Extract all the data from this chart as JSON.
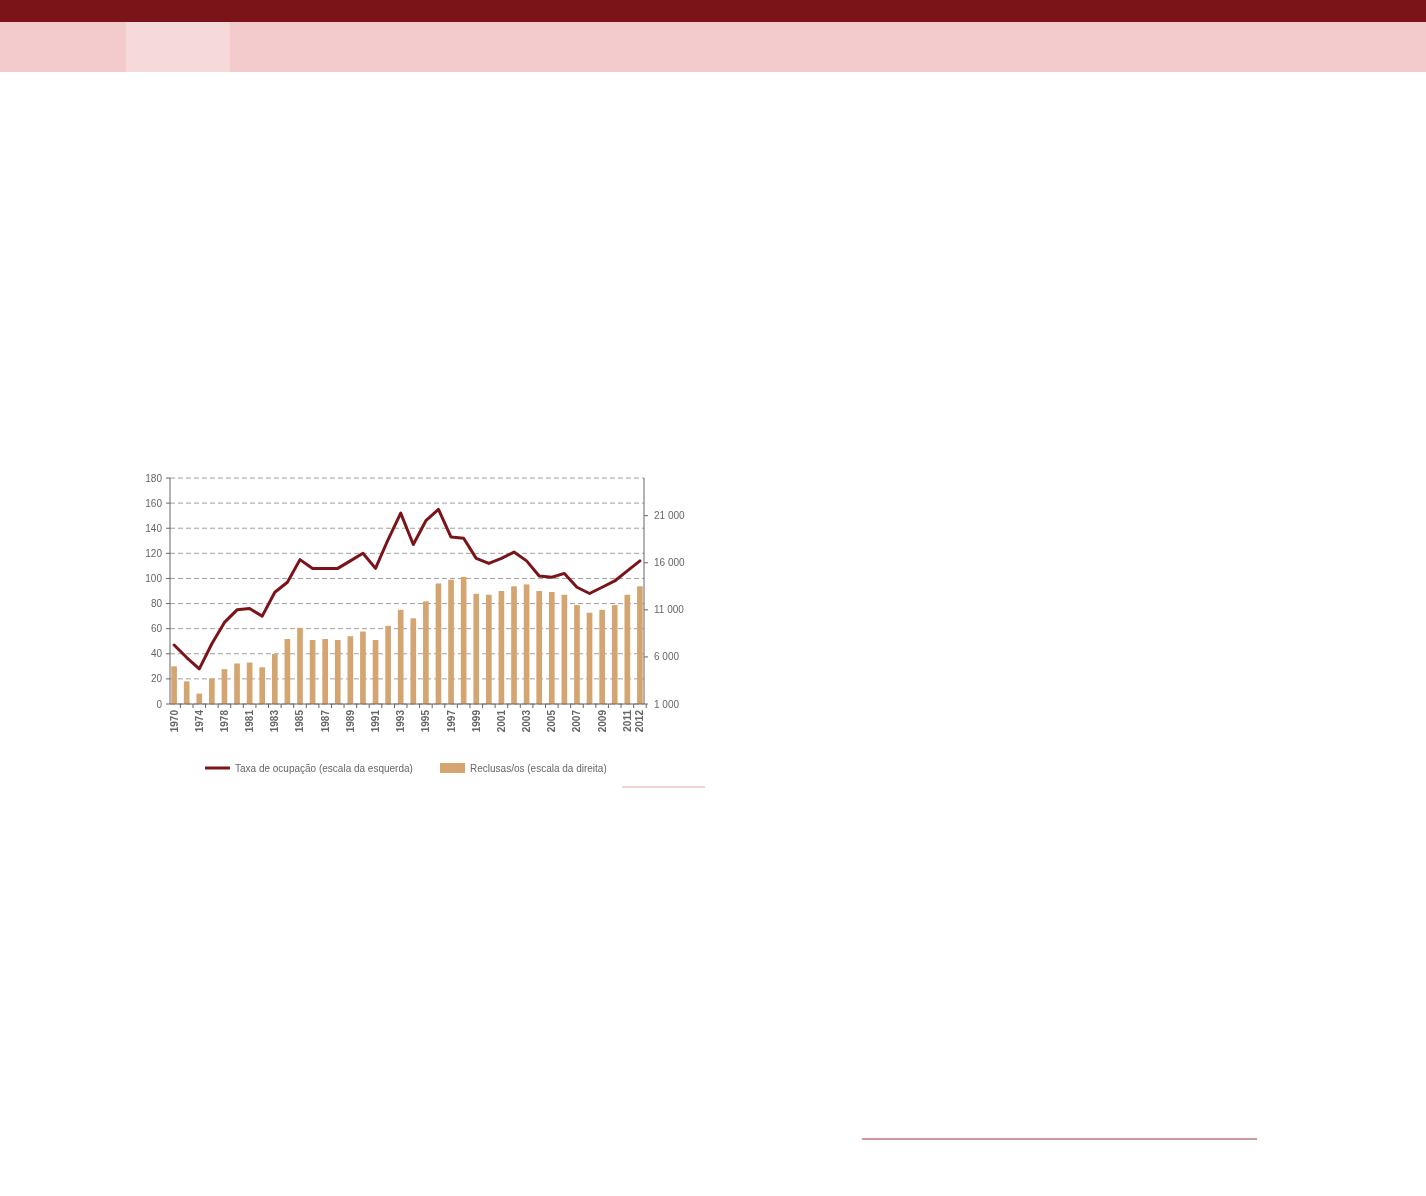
{
  "chart_data": {
    "type": "bar",
    "categories": [
      "1970",
      null,
      "1974",
      null,
      "1978",
      null,
      "1981",
      null,
      "1983",
      null,
      "1985",
      null,
      "1987",
      null,
      "1989",
      null,
      "1991",
      null,
      "1993",
      null,
      "1995",
      null,
      "1997",
      null,
      "1999",
      null,
      "2001",
      null,
      "2003",
      null,
      "2005",
      null,
      "2007",
      null,
      "2009",
      null,
      "2011",
      "2012"
    ],
    "series": [
      {
        "name": "Taxa de ocupação (escala da esquerda)",
        "type": "line",
        "color": "#7b1419",
        "values": [
          47,
          37,
          28,
          48,
          65,
          75,
          76,
          70,
          89,
          97,
          115,
          108,
          108,
          108,
          114,
          120,
          108,
          131,
          152,
          127,
          146,
          155,
          133,
          132,
          116,
          112,
          116,
          121,
          114,
          102,
          101,
          104,
          93,
          88,
          93,
          98,
          106,
          114
        ]
      },
      {
        "name": "Reclusas/os (escala da direita)",
        "axis": "y2",
        "color": "#d4a571",
        "values": [
          5000,
          3400,
          2100,
          3700,
          4700,
          5300,
          5400,
          4900,
          6300,
          7900,
          9100,
          7800,
          7900,
          7800,
          8200,
          8700,
          7800,
          9300,
          11000,
          10100,
          11900,
          13800,
          14200,
          14500,
          12700,
          12600,
          13000,
          13500,
          13700,
          13000,
          12900,
          12600,
          11500,
          10700,
          11000,
          11500,
          12600,
          13500
        ]
      }
    ],
    "ylim": [
      0,
      180
    ],
    "yticks": [
      0,
      20,
      40,
      60,
      80,
      100,
      120,
      140,
      160,
      180
    ],
    "y2lim": [
      1000,
      25000
    ],
    "y2ticks": [
      {
        "value": 1000,
        "label": "1 000"
      },
      {
        "value": 6000,
        "label": "6 000"
      },
      {
        "value": 11000,
        "label": "11 000"
      },
      {
        "value": 16000,
        "label": "16 000"
      },
      {
        "value": 21000,
        "label": "21 000"
      }
    ],
    "grid": "y",
    "legend": "bottom",
    "line_style": "solid",
    "marker": "none"
  }
}
